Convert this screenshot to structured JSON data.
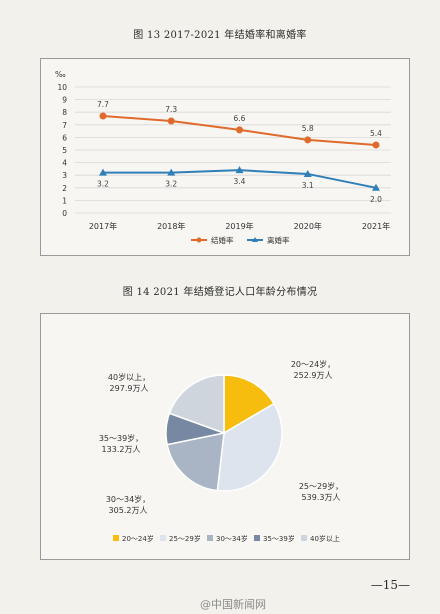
{
  "figure13_title": "图 13    2017-2021 年结婚率和离婚率",
  "figure14_title": "图 14    2021 年结婚登记人口年龄分布情况",
  "page_number": "—15—",
  "watermark": "@中国新闻网",
  "chart_data": [
    {
      "type": "line",
      "unit": "‰",
      "categories": [
        "2017年",
        "2018年",
        "2019年",
        "2020年",
        "2021年"
      ],
      "ylim": [
        0,
        10
      ],
      "yticks": [
        0,
        1,
        2,
        3,
        4,
        5,
        6,
        7,
        8,
        9,
        10
      ],
      "grid": true,
      "legend_position": "bottom",
      "series": [
        {
          "name": "结婚率",
          "values": [
            7.7,
            7.3,
            6.6,
            5.8,
            5.4
          ],
          "labels": [
            "7.7",
            "7.3",
            "6.6",
            "5.8",
            "5.4"
          ],
          "color": "#e06a2b",
          "marker": "circle"
        },
        {
          "name": "离婚率",
          "values": [
            3.2,
            3.2,
            3.4,
            3.1,
            2.0
          ],
          "labels": [
            "3.2",
            "3.2",
            "3.4",
            "3.1",
            "2.0"
          ],
          "color": "#2f7fb8",
          "marker": "triangle"
        }
      ]
    },
    {
      "type": "pie",
      "legend_position": "bottom",
      "slices": [
        {
          "name": "20～24岁",
          "value": 252.9,
          "label": "20～24岁，\n252.9万人",
          "color": "#f6bd0f"
        },
        {
          "name": "25～29岁",
          "value": 539.3,
          "label": "25～29岁，\n539.3万人",
          "color": "#dde4ee"
        },
        {
          "name": "30～34岁",
          "value": 305.2,
          "label": "30～34岁，\n305.2万人",
          "color": "#a9b4c5"
        },
        {
          "name": "35～39岁",
          "value": 133.2,
          "label": "35～39岁，\n133.2万人",
          "color": "#7688a2"
        },
        {
          "name": "40岁以上",
          "value": 297.9,
          "label": "40岁以上，\n297.9万人",
          "color": "#cfd5dd"
        }
      ]
    }
  ]
}
